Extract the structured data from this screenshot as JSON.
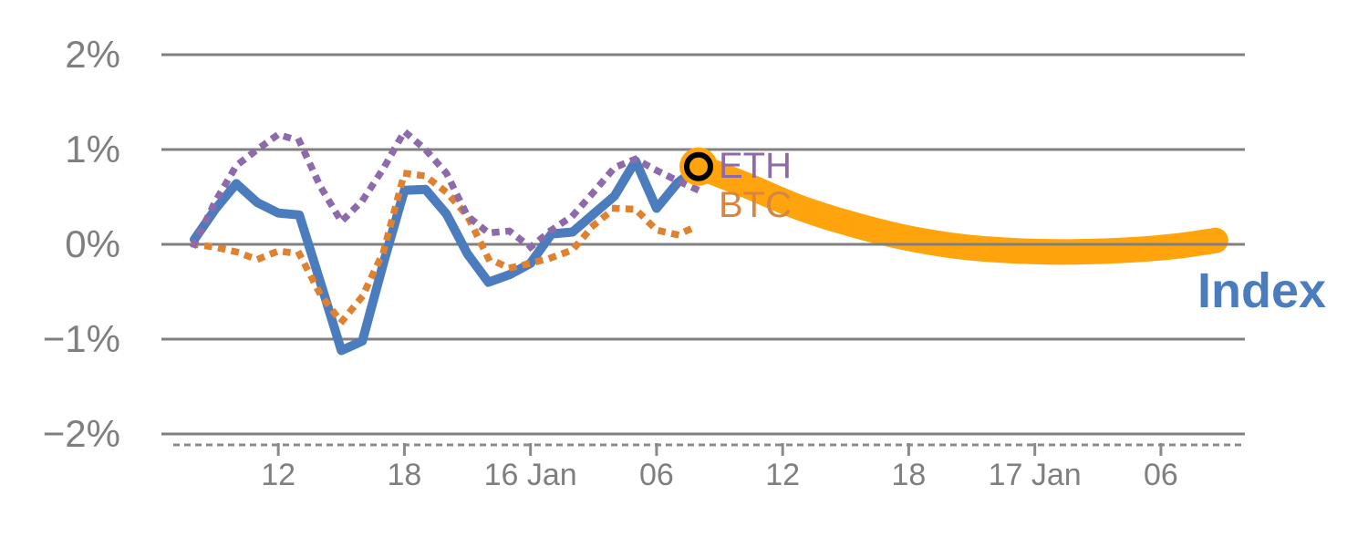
{
  "chart_data": {
    "type": "line",
    "title": "",
    "background": "#FFFFFF",
    "grid": true,
    "grid_color": "#808080",
    "axis_dash_color": "#8A8A8A",
    "label_color": "#7F7F7F",
    "y_axis": {
      "unit": "percent",
      "range": [
        -2,
        2
      ],
      "ticks": [
        {
          "label": "2%",
          "value": 2
        },
        {
          "label": "1%",
          "value": 1
        },
        {
          "label": "0%",
          "value": 0
        },
        {
          "label": "−1%",
          "value": -1
        },
        {
          "label": "−2%",
          "value": -2
        }
      ]
    },
    "x_axis": {
      "unit": "hours",
      "ticks": [
        {
          "label": "12",
          "hour": 4
        },
        {
          "label": "18",
          "hour": 10
        },
        {
          "label": "16 Jan",
          "hour": 16
        },
        {
          "label": "06",
          "hour": 22
        },
        {
          "label": "12",
          "hour": 28
        },
        {
          "label": "18",
          "hour": 34
        },
        {
          "label": "17 Jan",
          "hour": 40
        },
        {
          "label": "06",
          "hour": 46
        }
      ]
    },
    "series": [
      {
        "name": "ETH",
        "style": "dotted",
        "color": "#8D6BAA",
        "x_hours": [
          0,
          1,
          2,
          3,
          4,
          5,
          6,
          7,
          8,
          9,
          10,
          11,
          12,
          13,
          14,
          15,
          16,
          17,
          18,
          19,
          20,
          21,
          22,
          23,
          24
        ],
        "values": [
          0.0,
          0.45,
          0.83,
          1.0,
          1.16,
          1.09,
          0.61,
          0.24,
          0.46,
          0.8,
          1.19,
          1.0,
          0.75,
          0.3,
          0.12,
          0.14,
          -0.03,
          0.15,
          0.3,
          0.55,
          0.81,
          0.9,
          0.78,
          0.67,
          0.57
        ]
      },
      {
        "name": "BTC",
        "style": "dotted",
        "color": "#E0812F",
        "x_hours": [
          0,
          1,
          2,
          3,
          4,
          5,
          6,
          7,
          8,
          9,
          10,
          11,
          12,
          13,
          14,
          15,
          16,
          17,
          18,
          19,
          20,
          21,
          22,
          23,
          24
        ],
        "values": [
          0.0,
          -0.03,
          -0.08,
          -0.16,
          -0.07,
          -0.1,
          -0.53,
          -0.82,
          -0.55,
          -0.08,
          0.75,
          0.72,
          0.55,
          0.3,
          -0.15,
          -0.25,
          -0.2,
          -0.14,
          -0.06,
          0.2,
          0.38,
          0.37,
          0.15,
          0.1,
          0.2
        ]
      },
      {
        "name": "Index",
        "style": "solid",
        "color": "#4B7CBD",
        "x_hours": [
          0,
          1,
          2,
          3,
          4,
          5,
          6,
          7,
          8,
          9,
          10,
          11,
          12,
          13,
          14,
          15,
          16,
          17,
          18,
          19,
          20,
          21,
          22,
          23,
          24
        ],
        "values": [
          0.05,
          0.37,
          0.64,
          0.44,
          0.33,
          0.31,
          -0.4,
          -1.12,
          -1.02,
          -0.2,
          0.57,
          0.58,
          0.32,
          -0.1,
          -0.4,
          -0.32,
          -0.2,
          0.11,
          0.13,
          0.32,
          0.51,
          0.88,
          0.38,
          0.65,
          0.82
        ]
      }
    ],
    "forecast_band": {
      "for_series": "Index",
      "style": "thick-band",
      "color": "#FFA40D",
      "x_hours": [
        24,
        26.3,
        28.9,
        31.5,
        34.1,
        36.7,
        39.3,
        41.9,
        44.5,
        46.7,
        48.6
      ],
      "values": [
        0.82,
        0.62,
        0.38,
        0.2,
        0.06,
        -0.03,
        -0.07,
        -0.08,
        -0.06,
        -0.02,
        0.04
      ]
    },
    "marker": {
      "x_hour": 24,
      "value": 0.82,
      "fill": "#FFA40D",
      "ring_color": "#000000"
    }
  }
}
